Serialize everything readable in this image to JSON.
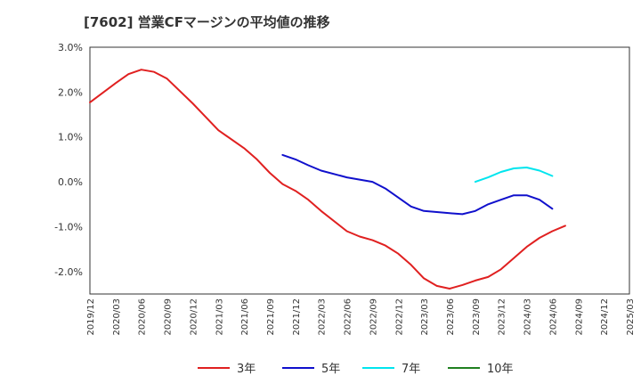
{
  "chart_data": {
    "type": "line",
    "title": "[7602]  営業CFマージンの平均値の推移",
    "xlabel": "",
    "ylabel": "",
    "ylim": [
      -2.5,
      3.0
    ],
    "y_ticks": [
      3.0,
      2.0,
      1.0,
      0.0,
      -1.0,
      -2.0
    ],
    "y_tick_labels": [
      "3.0%",
      "2.0%",
      "1.0%",
      "0.0%",
      "-1.0%",
      "-2.0%"
    ],
    "x_tick_labels": [
      "2019/12",
      "2020/03",
      "2020/06",
      "2020/09",
      "2020/12",
      "2021/03",
      "2021/06",
      "2021/09",
      "2021/12",
      "2022/03",
      "2022/06",
      "2022/09",
      "2022/12",
      "2023/03",
      "2023/06",
      "2023/09",
      "2023/12",
      "2024/03",
      "2024/06",
      "2024/09",
      "2024/12",
      "2025/03"
    ],
    "grid": true,
    "legend_position": "bottom",
    "series": [
      {
        "name": "3年",
        "color": "#e02020",
        "points": [
          [
            0,
            1.77
          ],
          [
            1,
            2.2
          ],
          [
            1.5,
            2.4
          ],
          [
            2,
            2.5
          ],
          [
            2.5,
            2.45
          ],
          [
            3,
            2.3
          ],
          [
            4,
            1.75
          ],
          [
            5,
            1.15
          ],
          [
            6,
            0.75
          ],
          [
            6.5,
            0.5
          ],
          [
            7,
            0.2
          ],
          [
            7.5,
            -0.05
          ],
          [
            8,
            -0.2
          ],
          [
            8.5,
            -0.4
          ],
          [
            9,
            -0.65
          ],
          [
            10,
            -1.1
          ],
          [
            10.5,
            -1.22
          ],
          [
            11,
            -1.3
          ],
          [
            11.5,
            -1.42
          ],
          [
            12,
            -1.6
          ],
          [
            12.5,
            -1.85
          ],
          [
            13,
            -2.15
          ],
          [
            13.5,
            -2.32
          ],
          [
            14,
            -2.38
          ],
          [
            14.5,
            -2.3
          ],
          [
            15,
            -2.2
          ],
          [
            15.5,
            -2.12
          ],
          [
            16,
            -1.95
          ],
          [
            16.5,
            -1.7
          ],
          [
            17,
            -1.45
          ],
          [
            17.5,
            -1.25
          ],
          [
            18,
            -1.1
          ],
          [
            18.5,
            -0.98
          ]
        ]
      },
      {
        "name": "5年",
        "color": "#1010cc",
        "points": [
          [
            7.5,
            0.6
          ],
          [
            8,
            0.5
          ],
          [
            8.5,
            0.37
          ],
          [
            9,
            0.25
          ],
          [
            10,
            0.1
          ],
          [
            11,
            0.0
          ],
          [
            11.5,
            -0.15
          ],
          [
            12,
            -0.35
          ],
          [
            12.5,
            -0.55
          ],
          [
            13,
            -0.65
          ],
          [
            14,
            -0.7
          ],
          [
            14.5,
            -0.72
          ],
          [
            15,
            -0.65
          ],
          [
            15.5,
            -0.5
          ],
          [
            16,
            -0.4
          ],
          [
            16.5,
            -0.3
          ],
          [
            17,
            -0.3
          ],
          [
            17.5,
            -0.4
          ],
          [
            18,
            -0.6
          ]
        ]
      },
      {
        "name": "7年",
        "color": "#00e5ee",
        "points": [
          [
            15,
            0.0
          ],
          [
            15.5,
            0.1
          ],
          [
            16,
            0.22
          ],
          [
            16.5,
            0.3
          ],
          [
            17,
            0.32
          ],
          [
            17.5,
            0.25
          ],
          [
            18,
            0.13
          ]
        ]
      },
      {
        "name": "10年",
        "color": "#208020",
        "points": []
      }
    ]
  }
}
